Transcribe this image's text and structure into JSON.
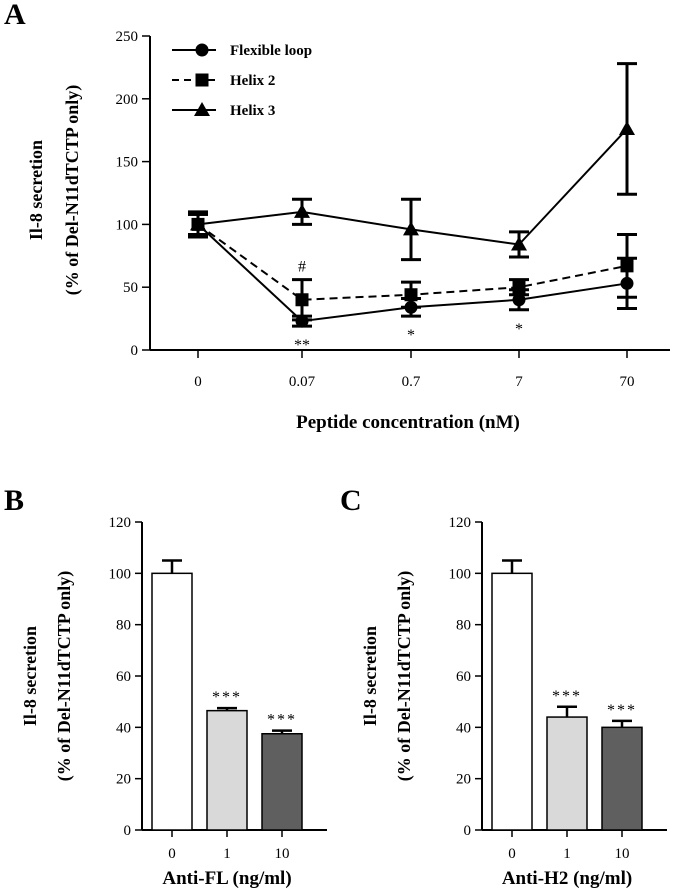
{
  "figure": {
    "panel_labels": {
      "a": "A",
      "b": "B",
      "c": "C"
    }
  },
  "colors": {
    "ink": "#000000",
    "bar_0": "#ffffff",
    "bar_1": "#d9d9d9",
    "bar_10": "#5f5f5f"
  },
  "chart_data": [
    {
      "panel": "A",
      "type": "line",
      "title": "",
      "xlabel": "Peptide concentration (nM)",
      "ylabel_line1": "Il-8 secretion",
      "ylabel_line2": "(% of Del-N11dTCTP only)",
      "categories": [
        "0",
        "0.07",
        "0.7",
        "7",
        "70"
      ],
      "yticks": [
        "0",
        "50",
        "100",
        "150",
        "200",
        "250"
      ],
      "ylim": [
        0,
        250
      ],
      "legend_position": "top-left",
      "series": [
        {
          "name": "Flexible loop",
          "marker": "circle",
          "dash": "solid",
          "values": [
            100,
            23,
            34,
            40,
            53
          ],
          "errors": [
            8,
            4,
            7,
            8,
            20
          ]
        },
        {
          "name": "Helix 2",
          "marker": "square",
          "dash": "dashed",
          "values": [
            100,
            40,
            44,
            50,
            67
          ],
          "errors": [
            8,
            16,
            10,
            6,
            25
          ]
        },
        {
          "name": "Helix 3",
          "marker": "triangle",
          "dash": "solid",
          "values": [
            100,
            110,
            96,
            84,
            176
          ],
          "errors": [
            10,
            10,
            24,
            10,
            52
          ]
        }
      ],
      "annotations": [
        {
          "category": "0.07",
          "text": "#",
          "above_series": "Helix 2"
        },
        {
          "category": "0.07",
          "text": "**",
          "below_series": "Flexible loop"
        },
        {
          "category": "0.7",
          "text": "*",
          "below_series": "Flexible loop"
        },
        {
          "category": "7",
          "text": "*",
          "below_series": "Flexible loop"
        }
      ]
    },
    {
      "panel": "B",
      "type": "bar",
      "xlabel": "Anti-FL (ng/ml)",
      "ylabel_line1": "Il-8 secretion",
      "ylabel_line2": "(% of Del-N11dTCTP only)",
      "categories": [
        "0",
        "1",
        "10"
      ],
      "values": [
        100,
        46.5,
        37.5
      ],
      "errors": [
        5,
        1,
        1.2
      ],
      "labels": [
        "",
        "***",
        "***"
      ],
      "yticks": [
        "0",
        "20",
        "40",
        "60",
        "80",
        "100",
        "120"
      ],
      "ylim": [
        0,
        120
      ]
    },
    {
      "panel": "C",
      "type": "bar",
      "xlabel": "Anti-H2 (ng/ml)",
      "ylabel_line1": "Il-8 secretion",
      "ylabel_line2": "(% of Del-N11dTCTP only)",
      "categories": [
        "0",
        "1",
        "10"
      ],
      "values": [
        100,
        44,
        40
      ],
      "errors": [
        5,
        4,
        2.5
      ],
      "labels": [
        "",
        "***",
        "***"
      ],
      "yticks": [
        "0",
        "20",
        "40",
        "60",
        "80",
        "100",
        "120"
      ],
      "ylim": [
        0,
        120
      ]
    }
  ]
}
